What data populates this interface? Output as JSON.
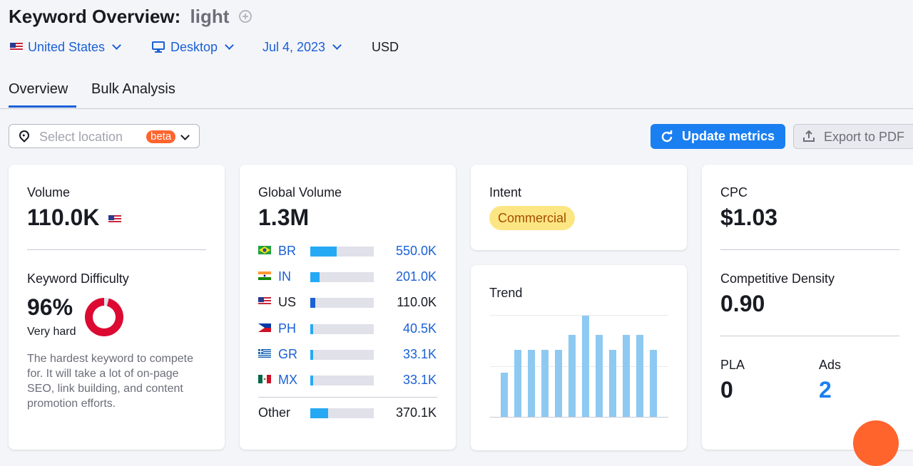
{
  "header": {
    "title": "Keyword Overview:",
    "keyword": "light"
  },
  "filters": {
    "country": "United States",
    "device": "Desktop",
    "date": "Jul 4, 2023",
    "currency": "USD"
  },
  "tabs": [
    {
      "label": "Overview",
      "active": true
    },
    {
      "label": "Bulk Analysis",
      "active": false
    }
  ],
  "location": {
    "placeholder": "Select location",
    "badge": "beta"
  },
  "actions": {
    "update": "Update metrics",
    "export": "Export to PDF"
  },
  "volume_card": {
    "label": "Volume",
    "value": "110.0K",
    "kd_label": "Keyword Difficulty",
    "kd_value": "96%",
    "kd_level": "Very hard",
    "kd_percent": 96,
    "kd_description": "The hardest keyword to compete for. It will take a lot of on-page SEO, link building, and content promotion efforts."
  },
  "global_card": {
    "label": "Global Volume",
    "value": "1.3M",
    "countries": [
      {
        "code": "BR",
        "value": "550.0K",
        "share": 0.42,
        "link": true
      },
      {
        "code": "IN",
        "value": "201.0K",
        "share": 0.15,
        "link": true
      },
      {
        "code": "US",
        "value": "110.0K",
        "share": 0.08,
        "link": false
      },
      {
        "code": "PH",
        "value": "40.5K",
        "share": 0.03,
        "link": true
      },
      {
        "code": "GR",
        "value": "33.1K",
        "share": 0.03,
        "link": true
      },
      {
        "code": "MX",
        "value": "33.1K",
        "share": 0.03,
        "link": true
      }
    ],
    "other_label": "Other",
    "other_value": "370.1K",
    "other_share": 0.28
  },
  "intent_card": {
    "label": "Intent",
    "value": "Commercial"
  },
  "trend_card": {
    "label": "Trend",
    "values": [
      0.44,
      0.66,
      0.66,
      0.66,
      0.66,
      0.81,
      1.0,
      0.81,
      0.66,
      0.81,
      0.81,
      0.66
    ]
  },
  "cpc_card": {
    "label": "CPC",
    "value": "$1.03",
    "density_label": "Competitive Density",
    "density_value": "0.90",
    "pla_label": "PLA",
    "pla_value": "0",
    "ads_label": "Ads",
    "ads_value": "2"
  },
  "colors": {
    "accent": "#1a60d6",
    "button": "#1a7ff0",
    "bar": "#26a9f4",
    "trend": "#8ec9f2",
    "difficulty": "#dc0a32",
    "intent_bg": "#fce683"
  }
}
